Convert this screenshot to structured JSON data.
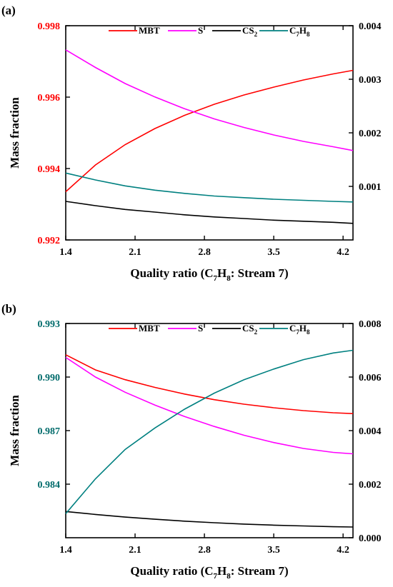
{
  "chart_data": [
    {
      "type": "line",
      "panel_label": "(a)",
      "xlabel": "Quality ratio (C7H8: Stream 7)",
      "xlabel_parts": {
        "pre": "Quality ratio (C",
        "s1": "7",
        "mid": "H",
        "s2": "8",
        "post": ": Stream 7)"
      },
      "ylabel": "Mass fraction",
      "xlim": [
        1.4,
        4.3
      ],
      "x_ticks": [
        "1.4",
        "2.1",
        "2.8",
        "3.5",
        "4.2"
      ],
      "ylim_left": [
        0.992,
        0.998
      ],
      "y_ticks_left": [
        "0.992",
        "0.994",
        "0.996",
        "0.998"
      ],
      "left_axis_color": "#ff0000",
      "ylim_right": [
        0.0,
        0.004
      ],
      "y_ticks_right": [
        "0.001",
        "0.002",
        "0.003",
        "0.004"
      ],
      "legend_location": "top",
      "x": [
        1.4,
        1.7,
        2.0,
        2.3,
        2.6,
        2.9,
        3.2,
        3.5,
        3.8,
        4.1,
        4.3
      ],
      "series": [
        {
          "name": "MBT",
          "name_main": "MBT",
          "name_sub1": "",
          "name_mid": "",
          "name_sub2": "",
          "axis": "left",
          "color": "#ff0000",
          "values": [
            0.99335,
            0.9941,
            0.99467,
            0.99512,
            0.99549,
            0.9958,
            0.99606,
            0.99628,
            0.99648,
            0.99665,
            0.99675
          ]
        },
        {
          "name": "S",
          "name_main": "S",
          "name_sub1": "",
          "name_mid": "",
          "name_sub2": "",
          "axis": "right",
          "color": "#ff00ff",
          "values": [
            0.00355,
            0.00322,
            0.00292,
            0.00267,
            0.00245,
            0.00226,
            0.0021,
            0.00196,
            0.00184,
            0.00174,
            0.00167
          ]
        },
        {
          "name": "CS2",
          "name_main": "CS",
          "name_sub1": "2",
          "name_mid": "",
          "name_sub2": "",
          "axis": "right",
          "color": "#000000",
          "values": [
            0.00072,
            0.00064,
            0.00057,
            0.00052,
            0.00047,
            0.00043,
            0.0004,
            0.00037,
            0.00035,
            0.00033,
            0.00031
          ]
        },
        {
          "name": "C7H8",
          "name_main": "C",
          "name_sub1": "7",
          "name_mid": "H",
          "name_sub2": "8",
          "axis": "right",
          "color": "#008080",
          "values": [
            0.00125,
            0.00112,
            0.00101,
            0.00093,
            0.00087,
            0.00082,
            0.00079,
            0.00076,
            0.00074,
            0.00072,
            0.00071
          ]
        }
      ]
    },
    {
      "type": "line",
      "panel_label": "(b)",
      "xlabel": "Quality ratio (C7H8: Stream 7)",
      "xlabel_parts": {
        "pre": "Quality ratio (C",
        "s1": "7",
        "mid": "H",
        "s2": "8",
        "post": ": Stream 7)"
      },
      "ylabel": "Mass fraction",
      "xlim": [
        1.4,
        4.3
      ],
      "x_ticks": [
        "1.4",
        "2.1",
        "2.8",
        "3.5",
        "4.2"
      ],
      "ylim_left": [
        0.981,
        0.993
      ],
      "y_ticks_left": [
        "0.984",
        "0.987",
        "0.990",
        "0.993"
      ],
      "left_axis_color": "#006b6b",
      "ylim_right": [
        0.0,
        0.008
      ],
      "y_ticks_right": [
        "0.000",
        "0.002",
        "0.004",
        "0.006",
        "0.008"
      ],
      "legend_location": "top",
      "x": [
        1.4,
        1.7,
        2.0,
        2.3,
        2.6,
        2.9,
        3.2,
        3.5,
        3.8,
        4.1,
        4.3
      ],
      "series": [
        {
          "name": "MBT",
          "name_main": "MBT",
          "name_sub1": "",
          "name_mid": "",
          "name_sub2": "",
          "axis": "left",
          "color": "#ff0000",
          "values": [
            0.99125,
            0.9904,
            0.98985,
            0.98942,
            0.98905,
            0.98873,
            0.98848,
            0.98828,
            0.98812,
            0.988,
            0.98795
          ]
        },
        {
          "name": "S",
          "name_main": "S",
          "name_sub1": "",
          "name_mid": "",
          "name_sub2": "",
          "axis": "left",
          "color": "#ff00ff",
          "values": [
            0.9911,
            0.99,
            0.98915,
            0.98843,
            0.98779,
            0.98723,
            0.98674,
            0.98633,
            0.986,
            0.98578,
            0.9857
          ]
        },
        {
          "name": "CS2",
          "name_main": "CS",
          "name_sub1": "2",
          "name_mid": "",
          "name_sub2": "",
          "axis": "right",
          "color": "#000000",
          "values": [
            0.00098,
            0.00087,
            0.00077,
            0.00069,
            0.00062,
            0.00056,
            0.00051,
            0.00047,
            0.00044,
            0.00041,
            0.0004
          ]
        },
        {
          "name": "C7H8",
          "name_main": "C",
          "name_sub1": "7",
          "name_mid": "H",
          "name_sub2": "8",
          "axis": "right",
          "color": "#008080",
          "values": [
            0.0009,
            0.0022,
            0.0033,
            0.0041,
            0.0048,
            0.0054,
            0.0059,
            0.0063,
            0.00665,
            0.0069,
            0.007
          ]
        }
      ]
    }
  ]
}
